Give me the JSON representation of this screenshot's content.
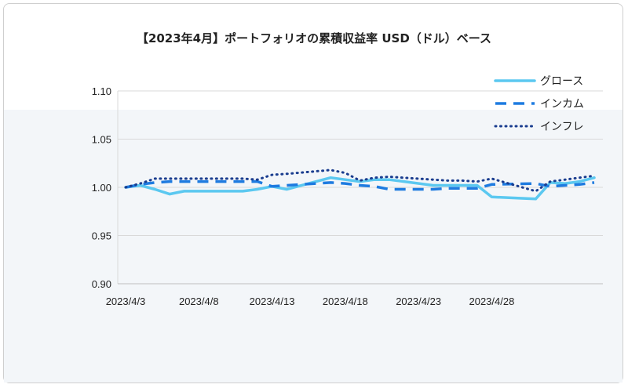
{
  "chart_data": {
    "type": "line",
    "title": "【2023年4月】ポートフォリオの累積収益率 USD（ドル）ベース",
    "xlabel": "",
    "ylabel": "",
    "x_tick_labels": [
      "2023/4/3",
      "2023/4/8",
      "2023/4/13",
      "2023/4/18",
      "2023/4/23",
      "2023/4/28"
    ],
    "y_tick_labels": [
      "0.90",
      "0.95",
      "1.00",
      "1.05",
      "1.10"
    ],
    "ylim": [
      0.9,
      1.1
    ],
    "legend_position": "top-right",
    "grid": "horizontal",
    "series": [
      {
        "name": "グロース",
        "color": "#5bc8f0",
        "style": "solid",
        "points": [
          [
            "2023/4/3",
            1.0
          ],
          [
            "2023/4/4",
            1.002
          ],
          [
            "2023/4/5",
            0.998
          ],
          [
            "2023/4/6",
            0.993
          ],
          [
            "2023/4/7",
            0.996
          ],
          [
            "2023/4/10",
            0.996
          ],
          [
            "2023/4/11",
            0.996
          ],
          [
            "2023/4/12",
            0.998
          ],
          [
            "2023/4/13",
            1.001
          ],
          [
            "2023/4/14",
            0.998
          ],
          [
            "2023/4/17",
            1.01
          ],
          [
            "2023/4/18",
            1.008
          ],
          [
            "2023/4/19",
            1.006
          ],
          [
            "2023/4/20",
            1.008
          ],
          [
            "2023/4/21",
            1.008
          ],
          [
            "2023/4/24",
            1.002
          ],
          [
            "2023/4/25",
            1.002
          ],
          [
            "2023/4/26",
            1.002
          ],
          [
            "2023/4/27",
            1.002
          ],
          [
            "2023/4/28",
            0.99
          ],
          [
            "2023/5/1",
            0.988
          ],
          [
            "2023/5/2",
            1.005
          ],
          [
            "2023/5/3",
            1.004
          ],
          [
            "2023/5/4",
            1.006
          ],
          [
            "2023/5/5",
            1.01
          ]
        ]
      },
      {
        "name": "インカム",
        "color": "#1e7be0",
        "style": "dashed",
        "points": [
          [
            "2023/4/3",
            1.0
          ],
          [
            "2023/4/4",
            1.003
          ],
          [
            "2023/4/5",
            1.005
          ],
          [
            "2023/4/6",
            1.006
          ],
          [
            "2023/4/7",
            1.006
          ],
          [
            "2023/4/10",
            1.006
          ],
          [
            "2023/4/11",
            1.006
          ],
          [
            "2023/4/12",
            1.006
          ],
          [
            "2023/4/13",
            1.001
          ],
          [
            "2023/4/14",
            1.002
          ],
          [
            "2023/4/17",
            1.005
          ],
          [
            "2023/4/18",
            1.004
          ],
          [
            "2023/4/19",
            1.002
          ],
          [
            "2023/4/20",
            1.001
          ],
          [
            "2023/4/21",
            0.998
          ],
          [
            "2023/4/24",
            0.998
          ],
          [
            "2023/4/25",
            0.999
          ],
          [
            "2023/4/26",
            0.999
          ],
          [
            "2023/4/27",
            0.999
          ],
          [
            "2023/4/28",
            1.003
          ],
          [
            "2023/5/1",
            1.004
          ],
          [
            "2023/5/2",
            1.001
          ],
          [
            "2023/5/3",
            1.002
          ],
          [
            "2023/5/4",
            1.003
          ],
          [
            "2023/5/5",
            1.005
          ]
        ]
      },
      {
        "name": "インフレ",
        "color": "#1a3d8f",
        "style": "dotted",
        "points": [
          [
            "2023/4/3",
            1.0
          ],
          [
            "2023/4/4",
            1.004
          ],
          [
            "2023/4/5",
            1.009
          ],
          [
            "2023/4/6",
            1.009
          ],
          [
            "2023/4/7",
            1.009
          ],
          [
            "2023/4/10",
            1.009
          ],
          [
            "2023/4/11",
            1.009
          ],
          [
            "2023/4/12",
            1.008
          ],
          [
            "2023/4/13",
            1.013
          ],
          [
            "2023/4/14",
            1.014
          ],
          [
            "2023/4/17",
            1.018
          ],
          [
            "2023/4/18",
            1.015
          ],
          [
            "2023/4/19",
            1.007
          ],
          [
            "2023/4/20",
            1.01
          ],
          [
            "2023/4/21",
            1.011
          ],
          [
            "2023/4/24",
            1.008
          ],
          [
            "2023/4/25",
            1.007
          ],
          [
            "2023/4/26",
            1.007
          ],
          [
            "2023/4/27",
            1.006
          ],
          [
            "2023/4/28",
            1.009
          ],
          [
            "2023/5/1",
            0.996
          ],
          [
            "2023/5/2",
            1.006
          ],
          [
            "2023/5/3",
            1.008
          ],
          [
            "2023/5/4",
            1.01
          ],
          [
            "2023/5/5",
            1.012
          ]
        ]
      }
    ]
  }
}
